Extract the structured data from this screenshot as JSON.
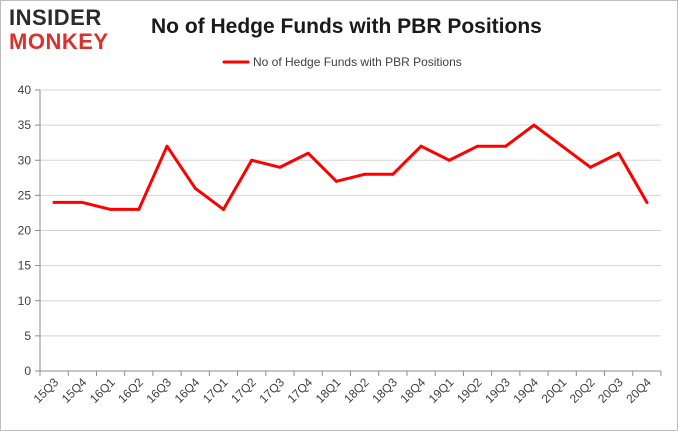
{
  "branding": {
    "logo_top": "INSIDER",
    "logo_bottom": "MONKEY"
  },
  "chart_data": {
    "type": "line",
    "title": "No of Hedge Funds with PBR Positions",
    "xlabel": "",
    "ylabel": "",
    "categories": [
      "15Q3",
      "15Q4",
      "16Q1",
      "16Q2",
      "16Q3",
      "16Q4",
      "17Q1",
      "17Q2",
      "17Q3",
      "17Q4",
      "18Q1",
      "18Q2",
      "18Q3",
      "18Q4",
      "19Q1",
      "19Q2",
      "19Q3",
      "19Q4",
      "20Q1",
      "20Q2",
      "20Q3",
      "20Q4"
    ],
    "series": [
      {
        "name": "No of Hedge Funds with PBR Positions",
        "color": "#ff0000",
        "values": [
          24,
          24,
          23,
          23,
          32,
          26,
          23,
          30,
          29,
          31,
          27,
          28,
          28,
          32,
          30,
          32,
          32,
          35,
          32,
          29,
          31,
          24
        ]
      }
    ],
    "ylim": [
      0,
      40
    ],
    "yticks": [
      0,
      5,
      10,
      15,
      20,
      25,
      30,
      35,
      40
    ],
    "grid": true,
    "legend_position": "top-center"
  }
}
